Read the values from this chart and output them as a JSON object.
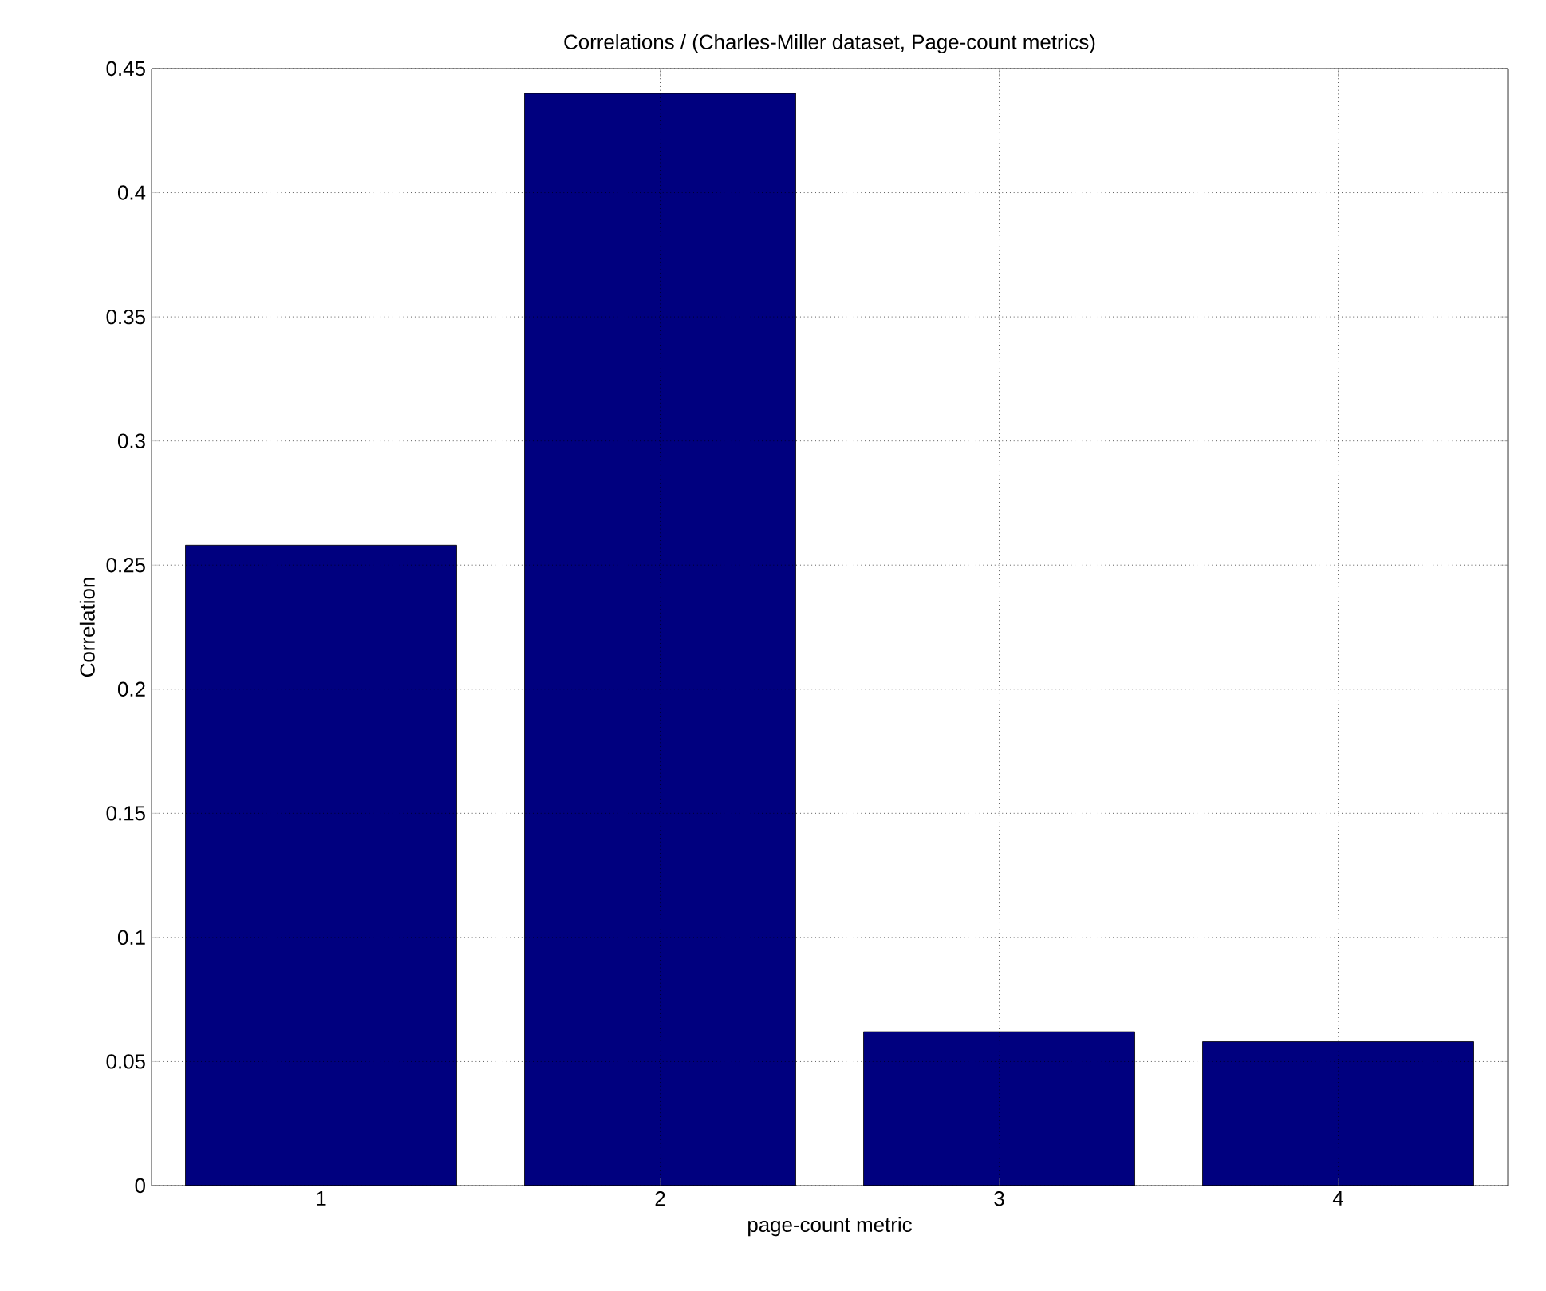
{
  "chart_data": {
    "type": "bar",
    "title": "Correlations / (Charles-Miller dataset, Page-count metrics)",
    "xlabel": "page-count metric",
    "ylabel": "Correlation",
    "x": [
      1,
      2,
      3,
      4
    ],
    "values": [
      0.258,
      0.44,
      0.062,
      0.058
    ],
    "color": "#00007f",
    "xlim": [
      0.5,
      4.5
    ],
    "xticks": [
      1,
      2,
      3,
      4
    ],
    "ylim": [
      0,
      0.45
    ],
    "yticks": [
      0,
      0.05,
      0.1,
      0.15,
      0.2,
      0.25,
      0.3,
      0.35,
      0.4,
      0.45
    ],
    "grid": true
  }
}
